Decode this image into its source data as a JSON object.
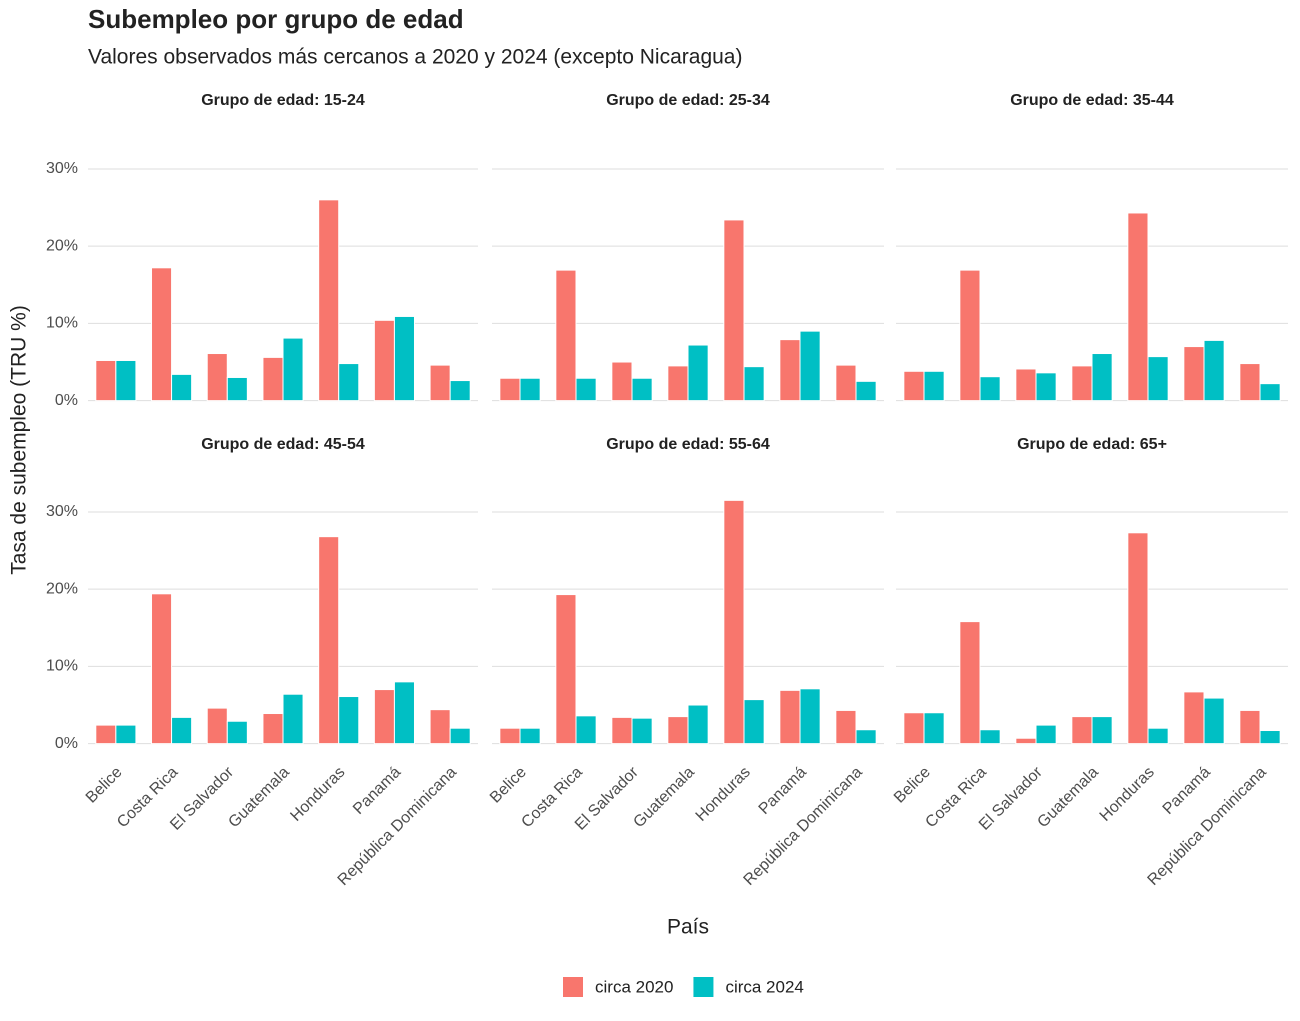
{
  "chart_data": {
    "type": "bar",
    "title": "Subempleo por grupo de edad",
    "subtitle": "Valores observados más cercanos a 2020 y 2024 (excepto Nicaragua)",
    "xlabel": "País",
    "ylabel": "Tasa de subempleo (TRU %)",
    "categories": [
      "Belice",
      "Costa Rica",
      "El Salvador",
      "Guatemala",
      "Honduras",
      "Panamá",
      "República Dominicana"
    ],
    "legend": [
      {
        "name": "circa 2020",
        "color": "#f8766d"
      },
      {
        "name": "circa 2024",
        "color": "#00bfc4"
      }
    ],
    "ylim": [
      -1.6,
      33.1
    ],
    "yticks": [
      {
        "value": 0,
        "label": "0%"
      },
      {
        "value": 10,
        "label": "10%"
      },
      {
        "value": 20,
        "label": "20%"
      },
      {
        "value": 30,
        "label": "30%"
      }
    ],
    "grid": true,
    "facets": [
      {
        "title": "Grupo de edad: 15-24",
        "series": [
          {
            "values": [
              5.2,
              17.2,
              6.1,
              5.6,
              26.0,
              10.4,
              4.6
            ]
          },
          {
            "values": [
              5.2,
              3.4,
              3.0,
              8.1,
              4.8,
              10.9,
              2.6
            ]
          }
        ]
      },
      {
        "title": "Grupo de edad: 25-34",
        "series": [
          {
            "values": [
              2.9,
              16.9,
              5.0,
              4.5,
              23.4,
              7.9,
              4.6
            ]
          },
          {
            "values": [
              2.9,
              2.9,
              2.9,
              7.2,
              4.4,
              9.0,
              2.5
            ]
          }
        ]
      },
      {
        "title": "Grupo de edad: 35-44",
        "series": [
          {
            "values": [
              3.8,
              16.9,
              4.1,
              4.5,
              24.3,
              7.0,
              4.8
            ]
          },
          {
            "values": [
              3.8,
              3.1,
              3.6,
              6.1,
              5.7,
              7.8,
              2.2
            ]
          }
        ]
      },
      {
        "title": "Grupo de edad: 45-54",
        "series": [
          {
            "values": [
              2.4,
              19.4,
              4.6,
              3.9,
              26.8,
              7.0,
              4.4
            ]
          },
          {
            "values": [
              2.4,
              3.4,
              2.9,
              6.4,
              6.1,
              8.0,
              2.0
            ]
          }
        ]
      },
      {
        "title": "Grupo de edad: 55-64",
        "series": [
          {
            "values": [
              2.0,
              19.3,
              3.4,
              3.5,
              31.5,
              6.9,
              4.3
            ]
          },
          {
            "values": [
              2.0,
              3.6,
              3.3,
              5.0,
              5.7,
              7.1,
              1.8
            ]
          }
        ]
      },
      {
        "title": "Grupo de edad: 65+",
        "series": [
          {
            "values": [
              4.0,
              15.8,
              0.7,
              3.5,
              27.3,
              6.7,
              4.3
            ]
          },
          {
            "values": [
              4.0,
              1.8,
              2.4,
              3.5,
              2.0,
              5.9,
              1.7
            ]
          }
        ]
      }
    ]
  }
}
